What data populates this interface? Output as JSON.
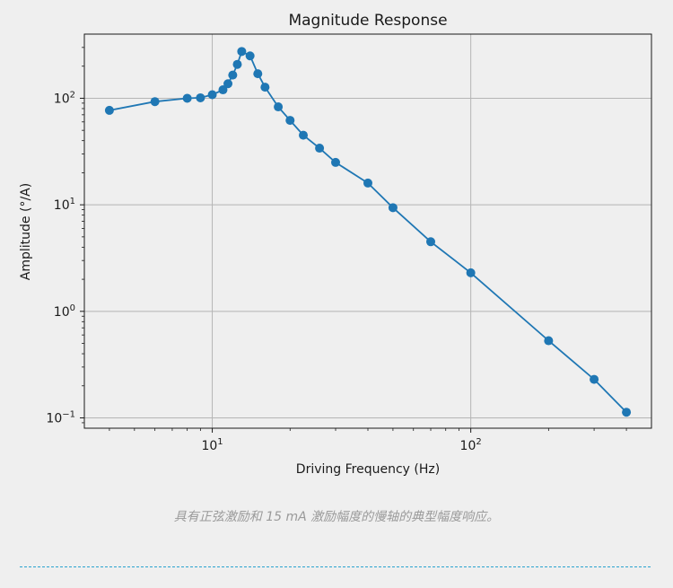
{
  "chart_data": {
    "type": "line",
    "title": "Magnitude Response",
    "xlabel": "Driving Frequency (Hz)",
    "ylabel": "Amplitude (°/A)",
    "xscale": "log",
    "yscale": "log",
    "xlim": [
      3.2,
      500
    ],
    "ylim": [
      0.08,
      400
    ],
    "grid": true,
    "line_color": "#1f77b4",
    "marker": "circle",
    "x_ticks": [
      {
        "value": 10,
        "base": "10",
        "exp": "1"
      },
      {
        "value": 100,
        "base": "10",
        "exp": "2"
      }
    ],
    "y_ticks": [
      {
        "value": 0.1,
        "base": "10",
        "exp": "−1"
      },
      {
        "value": 1,
        "base": "10",
        "exp": "0"
      },
      {
        "value": 10,
        "base": "10",
        "exp": "1"
      },
      {
        "value": 100,
        "base": "10",
        "exp": "2"
      }
    ],
    "series": [
      {
        "name": "slow axis",
        "x": [
          4,
          6,
          8,
          9,
          10,
          11,
          11.5,
          12,
          12.5,
          13,
          14,
          15,
          16,
          18,
          20,
          22.5,
          26,
          30,
          40,
          50,
          70,
          100,
          200,
          300,
          400
        ],
        "y": [
          77,
          93,
          100,
          101,
          108,
          120,
          137,
          165,
          208,
          275,
          250,
          170,
          127,
          83,
          62,
          45,
          34,
          25,
          16,
          9.4,
          4.5,
          2.3,
          0.53,
          0.23,
          0.113
        ]
      }
    ]
  },
  "caption": "具有正弦激励和 15 mA 激励幅度的慢轴的典型幅度响应。"
}
